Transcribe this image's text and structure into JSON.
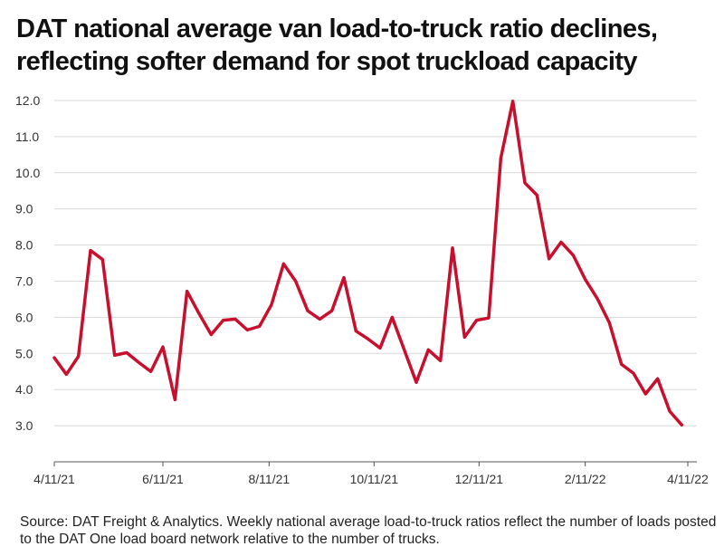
{
  "chart_data": {
    "type": "line",
    "title_line1": "DAT national average van load-to-truck ratio declines,",
    "title_line2": "reflecting softer demand for spot truckload capacity",
    "xlabel": "",
    "ylabel": "",
    "ylim": [
      2.0,
      12.0
    ],
    "yticks": [
      "3.0",
      "4.0",
      "5.0",
      "6.0",
      "7.0",
      "8.0",
      "9.0",
      "10.0",
      "11.0",
      "12.0"
    ],
    "xticks": [
      {
        "label": "4/11/21",
        "week": 0
      },
      {
        "label": "6/11/21",
        "week": 9
      },
      {
        "label": "8/11/21",
        "week": 17.8
      },
      {
        "label": "10/11/21",
        "week": 26.5
      },
      {
        "label": "12/11/21",
        "week": 35.2
      },
      {
        "label": "2/11/22",
        "week": 44
      },
      {
        "label": "4/11/22",
        "week": 52.5
      }
    ],
    "series": [
      {
        "name": "Van load-to-truck ratio",
        "color": "#c8102e",
        "values": [
          4.88,
          4.42,
          4.92,
          7.85,
          7.6,
          4.95,
          5.02,
          4.75,
          4.5,
          5.18,
          3.72,
          6.72,
          6.1,
          5.52,
          5.92,
          5.95,
          5.65,
          5.75,
          6.35,
          7.48,
          7.0,
          6.18,
          5.95,
          6.18,
          7.1,
          5.62,
          5.4,
          5.15,
          6.0,
          5.1,
          4.2,
          5.1,
          4.8,
          7.92,
          5.45,
          5.92,
          5.98,
          10.4,
          11.98,
          9.72,
          9.38,
          7.62,
          8.08,
          7.72,
          7.05,
          6.52,
          5.85,
          4.7,
          4.45,
          3.88,
          4.3,
          3.4,
          3.02
        ]
      }
    ]
  },
  "source": "Source: DAT Freight & Analytics. Weekly national average load-to-truck ratios reflect the number of loads posted to the DAT One load board network relative to the number of trucks."
}
